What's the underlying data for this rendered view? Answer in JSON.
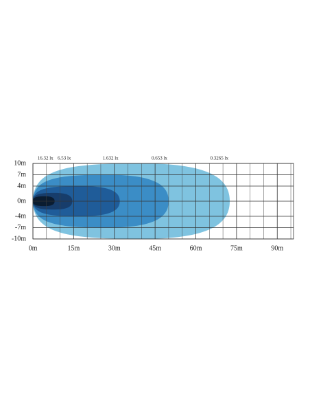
{
  "chart_data": {
    "type": "beam",
    "xlim": [
      0,
      96
    ],
    "ylim": [
      -10,
      10
    ],
    "xticks": [
      {
        "value": 0,
        "label": "0m"
      },
      {
        "value": 15,
        "label": "15m"
      },
      {
        "value": 30,
        "label": "30m"
      },
      {
        "value": 45,
        "label": "45m"
      },
      {
        "value": 60,
        "label": "60m"
      },
      {
        "value": 75,
        "label": "75m"
      },
      {
        "value": 90,
        "label": "90m"
      }
    ],
    "xminorticks": [
      5,
      10,
      20,
      25,
      35,
      40,
      50,
      55,
      65,
      70,
      80,
      85,
      95
    ],
    "yticks": [
      {
        "value": 10,
        "label": "10m"
      },
      {
        "value": 7,
        "label": "7m"
      },
      {
        "value": 4,
        "label": "4m"
      },
      {
        "value": 0,
        "label": "0m"
      },
      {
        "value": -4,
        "label": "-4m"
      },
      {
        "value": -7,
        "label": "-7m"
      },
      {
        "value": -10,
        "label": "-10m"
      }
    ],
    "grid": true,
    "series": [
      {
        "name": "0.3265 lx",
        "color": "#7fc3e0",
        "reach": 72.5,
        "half_width": 10
      },
      {
        "name": "0.653 lx",
        "color": "#3b8dc6",
        "reach": 50,
        "half_width": 7
      },
      {
        "name": "1.632 lx",
        "color": "#1f5c99",
        "reach": 32,
        "half_width": 4
      },
      {
        "name": "6.53 lx",
        "color": "#173d6b",
        "reach": 14.5,
        "half_width": 2.2
      },
      {
        "name": "16.32 lx",
        "color": "#0a1c30",
        "reach": 8,
        "half_width": 1.3
      }
    ]
  }
}
